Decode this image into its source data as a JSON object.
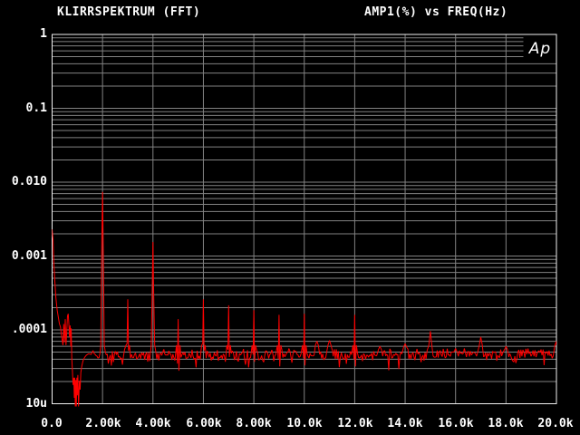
{
  "header": {
    "left_title": "KLIRRSPEKTRUM (FFT)",
    "right_title": "AMP1(%) vs FREQ(Hz)"
  },
  "logo": {
    "text": "Ap"
  },
  "colors": {
    "background": "#000000",
    "text": "#ffffff",
    "grid": "#828282",
    "plot_border": "#f0f0f0",
    "trace": "#ff0000"
  },
  "chart_data": {
    "type": "line",
    "title": "KLIRRSPEKTRUM (FFT)",
    "ylabel": "AMP1(%)",
    "xlabel": "FREQ(Hz)",
    "x_scale": "linear",
    "y_scale": "log",
    "xlim": [
      0,
      20000
    ],
    "ylim": [
      1e-05,
      1
    ],
    "grid": "on",
    "x_gridline_step_hz": 2000,
    "y_tick_labels": [
      "1",
      "0.1",
      "0.010",
      "0.001",
      ".0001",
      "10u"
    ],
    "y_tick_values": [
      1,
      0.1,
      0.01,
      0.001,
      0.0001,
      1e-05
    ],
    "x_tick_labels": [
      "0.0",
      "2.00k",
      "4.00k",
      "6.00k",
      "8.00k",
      "10.0k",
      "12.0k",
      "14.0k",
      "16.0k",
      "18.0k",
      "20.0k"
    ],
    "x_tick_values": [
      0,
      2000,
      4000,
      6000,
      8000,
      10000,
      12000,
      14000,
      16000,
      18000,
      20000
    ],
    "noise_floor_pct": 4.6e-05,
    "fundamental_notch_hz": 1000,
    "harmonic_peaks": [
      [
        2000,
        0.0074
      ],
      [
        3000,
        0.00026
      ],
      [
        4000,
        0.00155
      ],
      [
        5000,
        0.00014
      ],
      [
        6000,
        0.00026
      ],
      [
        7000,
        0.000215
      ],
      [
        8000,
        0.000185
      ],
      [
        9000,
        0.00016
      ],
      [
        10000,
        0.000165
      ],
      [
        10500,
        7e-05
      ],
      [
        11000,
        7.2e-05
      ],
      [
        12000,
        0.00016
      ],
      [
        13000,
        6e-05
      ],
      [
        14000,
        6.5e-05
      ],
      [
        15000,
        9.6e-05
      ],
      [
        16000,
        5.6e-05
      ],
      [
        17000,
        8e-05
      ],
      [
        18000,
        6e-05
      ],
      [
        20000,
        7e-05
      ]
    ],
    "low_freq_points": [
      [
        0,
        0.0023
      ],
      [
        35,
        0.0017
      ],
      [
        70,
        0.0008
      ],
      [
        105,
        0.00048
      ],
      [
        150,
        0.00027
      ],
      [
        200,
        0.000185
      ],
      [
        250,
        0.000145
      ],
      [
        290,
        0.00012
      ],
      [
        330,
        0.00011
      ],
      [
        370,
        8.5e-05
      ],
      [
        430,
        6.2e-05
      ],
      [
        460,
        0.00012
      ],
      [
        490,
        6.8e-05
      ],
      [
        520,
        0.00014
      ],
      [
        550,
        6.2e-05
      ],
      [
        580,
        9e-05
      ],
      [
        610,
        0.000155
      ],
      [
        640,
        0.000165
      ],
      [
        665,
        0.00012
      ],
      [
        690,
        8e-05
      ],
      [
        715,
        0.000115
      ],
      [
        740,
        6e-05
      ],
      [
        760,
        0.000105
      ],
      [
        780,
        4.2e-05
      ],
      [
        800,
        3e-05
      ],
      [
        830,
        1.8e-05
      ],
      [
        860,
        2.25e-05
      ],
      [
        880,
        1.2e-05
      ],
      [
        900,
        2.25e-05
      ],
      [
        920,
        8.5e-06
      ],
      [
        940,
        2.1e-05
      ],
      [
        960,
        7.5e-06
      ],
      [
        980,
        2.25e-05
      ],
      [
        1000,
        1.3e-05
      ],
      [
        1020,
        2.45e-05
      ],
      [
        1050,
        8.2e-06
      ],
      [
        1080,
        2.05e-05
      ],
      [
        1110,
        1.55e-05
      ],
      [
        1140,
        2.65e-05
      ],
      [
        1180,
        3.25e-05
      ],
      [
        1230,
        3.85e-05
      ],
      [
        1290,
        4.25e-05
      ],
      [
        1360,
        4.55e-05
      ],
      [
        1450,
        4.75e-05
      ],
      [
        1550,
        4.65e-05
      ],
      [
        1620,
        5.25e-05
      ],
      [
        1670,
        4.75e-05
      ]
    ]
  }
}
